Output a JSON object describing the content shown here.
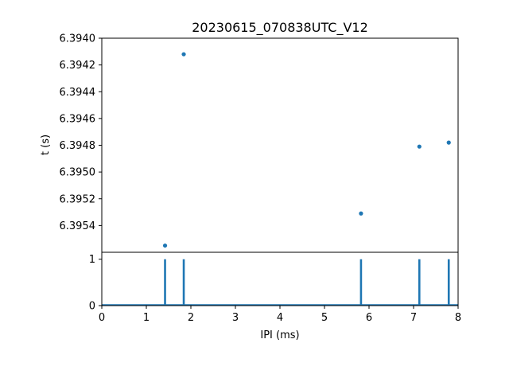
{
  "chart_data": [
    {
      "type": "scatter",
      "title": "20230615_070838UTC_V12",
      "xlabel": "",
      "ylabel": "t (s)",
      "xlim": [
        0,
        8
      ],
      "ylim": [
        6.3956,
        6.394
      ],
      "y_inverted": true,
      "ytick_values": [
        6.394,
        6.3942,
        6.3944,
        6.3946,
        6.3948,
        6.395,
        6.3952,
        6.3954
      ],
      "ytick_labels": [
        "6.3940",
        "6.3942",
        "6.3944",
        "6.3946",
        "6.3948",
        "6.3950",
        "6.3952",
        "6.3954"
      ],
      "grid": false,
      "color": "#1f77b4",
      "points": [
        {
          "x": 1.42,
          "y": 6.39555
        },
        {
          "x": 1.84,
          "y": 6.39412
        },
        {
          "x": 5.82,
          "y": 6.39531
        },
        {
          "x": 7.13,
          "y": 6.39481
        },
        {
          "x": 7.79,
          "y": 6.39478
        }
      ]
    },
    {
      "type": "bar",
      "title": "",
      "xlabel": "IPI (ms)",
      "ylabel": "",
      "xlim": [
        0,
        8
      ],
      "ylim": [
        0,
        1.15
      ],
      "xtick_values": [
        0,
        1,
        2,
        3,
        4,
        5,
        6,
        7,
        8
      ],
      "xtick_labels": [
        "0",
        "1",
        "2",
        "3",
        "4",
        "5",
        "6",
        "7",
        "8"
      ],
      "ytick_values": [
        0,
        1
      ],
      "ytick_labels": [
        "0",
        "1"
      ],
      "grid": false,
      "color": "#1f77b4",
      "x": [
        1.42,
        1.84,
        5.82,
        7.13,
        7.79
      ],
      "values": [
        1,
        1,
        1,
        1,
        1
      ]
    }
  ]
}
